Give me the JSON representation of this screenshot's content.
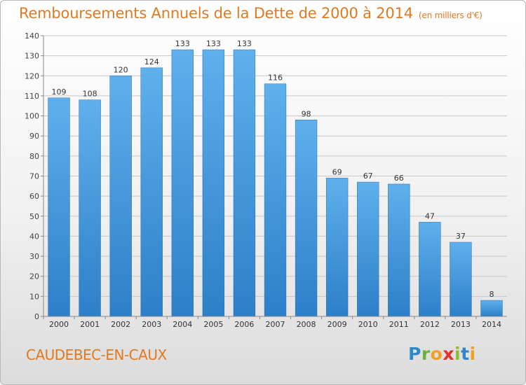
{
  "title": "Remboursements Annuels de la Dette de 2000 à 2014",
  "unit_note": "(en milliers d'€)",
  "city": "CAUDEBEC-EN-CAUX",
  "logo": {
    "letters": [
      "P",
      "r",
      "o",
      "x",
      "i",
      "t",
      "i"
    ],
    "colors": [
      "#2f88c9",
      "#69b33c",
      "#f2a01f",
      "#e2312c",
      "#8bbd3b",
      "#2f88c9",
      "#f2a01f"
    ]
  },
  "colors": {
    "bar": "#4ea3e4",
    "bar_dark": "#2a74bd",
    "title": "#e07a22",
    "grid": "#c8c8c8"
  },
  "chart_data": {
    "type": "bar",
    "title": "Remboursements Annuels de la Dette de 2000 à 2014",
    "categories": [
      "2000",
      "2001",
      "2002",
      "2003",
      "2004",
      "2005",
      "2006",
      "2007",
      "2008",
      "2009",
      "2010",
      "2011",
      "2012",
      "2013",
      "2014"
    ],
    "values": [
      109,
      108,
      120,
      124,
      133,
      133,
      133,
      116,
      98,
      69,
      67,
      66,
      47,
      37,
      8
    ],
    "ylim": [
      0,
      140
    ],
    "yticks": [
      0,
      10,
      20,
      30,
      40,
      50,
      60,
      70,
      80,
      90,
      100,
      110,
      120,
      130,
      140
    ],
    "xlabel": "",
    "ylabel": "",
    "grid": true
  }
}
